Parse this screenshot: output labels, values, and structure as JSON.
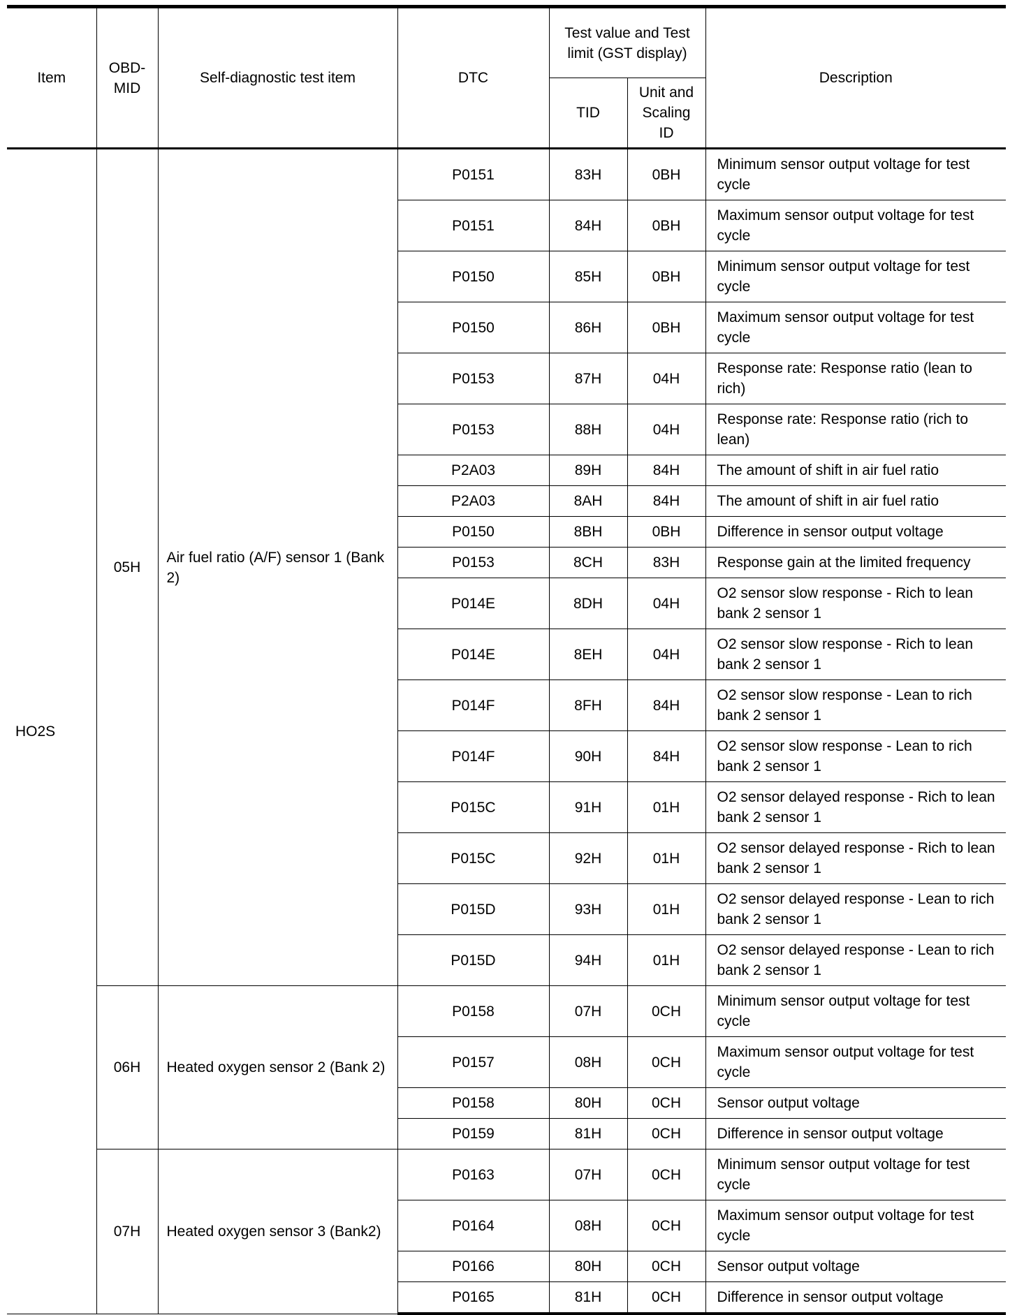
{
  "headers": {
    "item": "Item",
    "obd_mid": "OBD-MID",
    "test_item": "Self-diagnostic test item",
    "dtc": "DTC",
    "test_value_group": "Test value and Test limit (GST display)",
    "tid": "TID",
    "unit_scaling": "Unit and Scaling ID",
    "description": "Description"
  },
  "item": "HO2S",
  "groups": [
    {
      "obd_mid": "05H",
      "test_item": "Air fuel ratio (A/F) sensor 1 (Bank 2)",
      "rows": [
        {
          "dtc": "P0151",
          "tid": "83H",
          "unit": "0BH",
          "desc": "Minimum sensor output voltage for test cycle",
          "tall": true
        },
        {
          "dtc": "P0151",
          "tid": "84H",
          "unit": "0BH",
          "desc": "Maximum sensor output voltage for test cycle",
          "tall": true
        },
        {
          "dtc": "P0150",
          "tid": "85H",
          "unit": "0BH",
          "desc": "Minimum sensor output voltage for test cycle",
          "tall": true
        },
        {
          "dtc": "P0150",
          "tid": "86H",
          "unit": "0BH",
          "desc": "Maximum sensor output voltage for test cycle",
          "tall": true
        },
        {
          "dtc": "P0153",
          "tid": "87H",
          "unit": "04H",
          "desc": "Response rate: Response ratio (lean to rich)",
          "tall": true
        },
        {
          "dtc": "P0153",
          "tid": "88H",
          "unit": "04H",
          "desc": "Response rate: Response ratio (rich to lean)",
          "tall": true
        },
        {
          "dtc": "P2A03",
          "tid": "89H",
          "unit": "84H",
          "desc": "The amount of shift in air fuel ratio",
          "tall": false
        },
        {
          "dtc": "P2A03",
          "tid": "8AH",
          "unit": "84H",
          "desc": "The amount of shift in air fuel ratio",
          "tall": false
        },
        {
          "dtc": "P0150",
          "tid": "8BH",
          "unit": "0BH",
          "desc": "Difference in sensor output voltage",
          "tall": false
        },
        {
          "dtc": "P0153",
          "tid": "8CH",
          "unit": "83H",
          "desc": "Response gain at the limited frequency",
          "tall": false
        },
        {
          "dtc": "P014E",
          "tid": "8DH",
          "unit": "04H",
          "desc": "O2 sensor slow response - Rich to lean bank 2 sensor 1",
          "tall": true
        },
        {
          "dtc": "P014E",
          "tid": "8EH",
          "unit": "04H",
          "desc": "O2 sensor slow response - Rich to lean bank 2 sensor 1",
          "tall": true
        },
        {
          "dtc": "P014F",
          "tid": "8FH",
          "unit": "84H",
          "desc": "O2 sensor slow response - Lean to rich bank 2 sensor 1",
          "tall": true
        },
        {
          "dtc": "P014F",
          "tid": "90H",
          "unit": "84H",
          "desc": "O2 sensor slow response - Lean to rich bank 2 sensor 1",
          "tall": true
        },
        {
          "dtc": "P015C",
          "tid": "91H",
          "unit": "01H",
          "desc": "O2 sensor delayed response - Rich to lean bank 2 sensor 1",
          "tall": true
        },
        {
          "dtc": "P015C",
          "tid": "92H",
          "unit": "01H",
          "desc": "O2 sensor delayed response - Rich to lean bank 2 sensor 1",
          "tall": true
        },
        {
          "dtc": "P015D",
          "tid": "93H",
          "unit": "01H",
          "desc": "O2 sensor delayed response - Lean to rich bank 2 sensor 1",
          "tall": true
        },
        {
          "dtc": "P015D",
          "tid": "94H",
          "unit": "01H",
          "desc": "O2 sensor delayed response - Lean to rich bank 2 sensor 1",
          "tall": true
        }
      ]
    },
    {
      "obd_mid": "06H",
      "test_item": "Heated oxygen sensor 2 (Bank 2)",
      "rows": [
        {
          "dtc": "P0158",
          "tid": "07H",
          "unit": "0CH",
          "desc": "Minimum sensor output voltage for test cycle",
          "tall": true
        },
        {
          "dtc": "P0157",
          "tid": "08H",
          "unit": "0CH",
          "desc": "Maximum sensor output voltage for test cycle",
          "tall": true
        },
        {
          "dtc": "P0158",
          "tid": "80H",
          "unit": "0CH",
          "desc": "Sensor output voltage",
          "tall": false
        },
        {
          "dtc": "P0159",
          "tid": "81H",
          "unit": "0CH",
          "desc": "Difference in sensor output voltage",
          "tall": false
        }
      ]
    },
    {
      "obd_mid": "07H",
      "test_item": "Heated oxygen sensor 3 (Bank2)",
      "rows": [
        {
          "dtc": "P0163",
          "tid": "07H",
          "unit": "0CH",
          "desc": "Minimum sensor output voltage for test cycle",
          "tall": true
        },
        {
          "dtc": "P0164",
          "tid": "08H",
          "unit": "0CH",
          "desc": "Maximum sensor output voltage for test cycle",
          "tall": true
        },
        {
          "dtc": "P0166",
          "tid": "80H",
          "unit": "0CH",
          "desc": "Sensor output voltage",
          "tall": false
        },
        {
          "dtc": "P0165",
          "tid": "81H",
          "unit": "0CH",
          "desc": "Difference in sensor output voltage",
          "tall": false
        }
      ]
    }
  ]
}
